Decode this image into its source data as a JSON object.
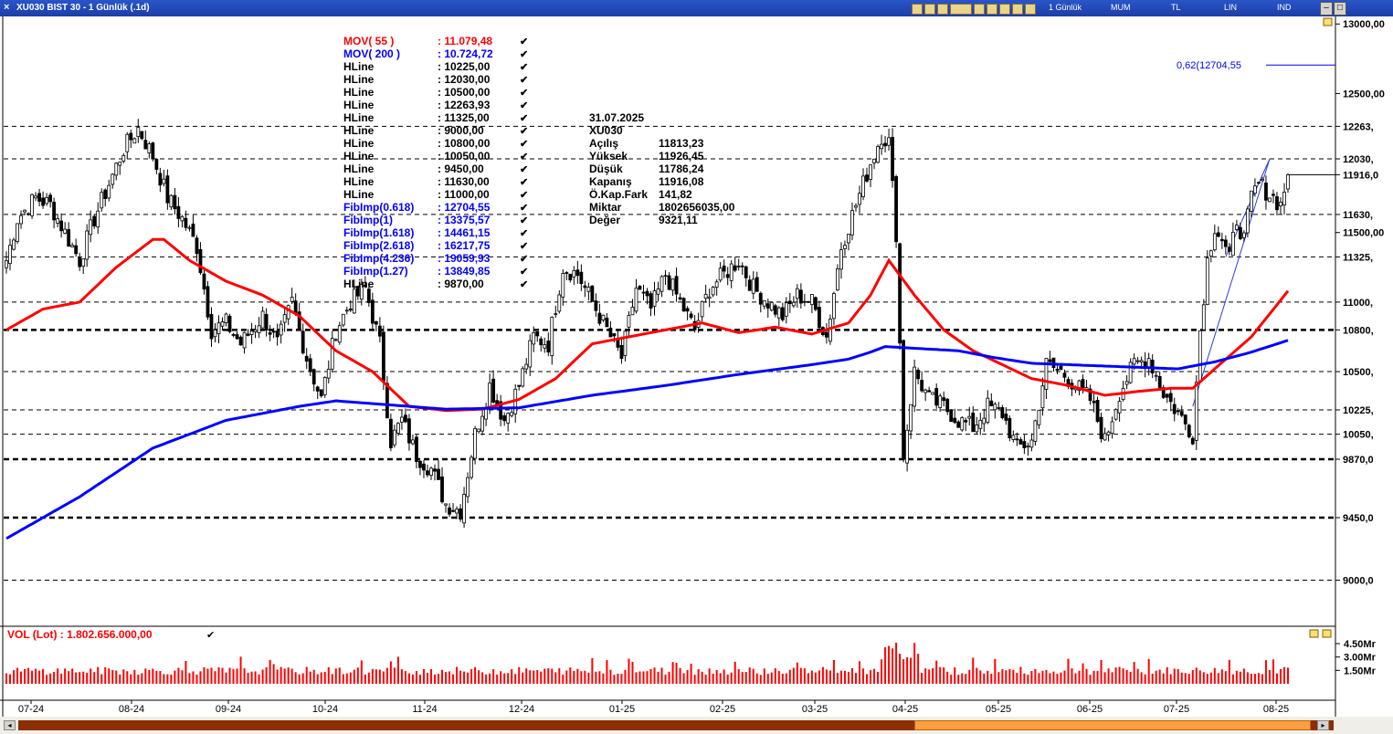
{
  "window": {
    "title": "XU030 BIST 30 - 1 Günlük (.1d)",
    "close_glyph": "×",
    "toolbar_items": [
      "1 Günlük",
      "MUM",
      "TL",
      "LIN",
      "IND"
    ]
  },
  "colors": {
    "mov55": "#ff0000",
    "mov200": "#0000ff",
    "fib": "#0000ff",
    "hline_label": "#000000",
    "volume": "#ff0000",
    "candle_up": "#ffffff",
    "candle_down": "#000000"
  },
  "legend": {
    "mov55": {
      "name": "MOV( 55 )",
      "value": ": 11.079,48"
    },
    "mov200": {
      "name": "MOV( 200 )",
      "value": ": 10.724,72"
    },
    "items": [
      {
        "name": "HLine",
        "value": ": 10225,00",
        "kind": "hline"
      },
      {
        "name": "HLine",
        "value": ": 12030,00",
        "kind": "hline"
      },
      {
        "name": "HLine",
        "value": ": 10500,00",
        "kind": "hline"
      },
      {
        "name": "HLine",
        "value": ": 12263,93",
        "kind": "hline"
      },
      {
        "name": "HLine",
        "value": ": 11325,00",
        "kind": "hline"
      },
      {
        "name": "HLine",
        "value": ": 9000,00",
        "kind": "hline"
      },
      {
        "name": "HLine",
        "value": ": 10800,00",
        "kind": "hline"
      },
      {
        "name": "HLine",
        "value": ": 10050,00",
        "kind": "hline"
      },
      {
        "name": "HLine",
        "value": ": 9450,00",
        "kind": "hline"
      },
      {
        "name": "HLine",
        "value": ": 11630,00",
        "kind": "hline"
      },
      {
        "name": "HLine",
        "value": ": 11000,00",
        "kind": "hline"
      },
      {
        "name": "FibImp(0.618)",
        "value": ": 12704,55",
        "kind": "fib"
      },
      {
        "name": "FibImp(1)",
        "value": ": 13375,57",
        "kind": "fib"
      },
      {
        "name": "FibImp(1.618)",
        "value": ": 14461,15",
        "kind": "fib"
      },
      {
        "name": "FibImp(2.618)",
        "value": ": 16217,75",
        "kind": "fib"
      },
      {
        "name": "FibImp(4.236)",
        "value": ": 19059,93",
        "kind": "fib"
      },
      {
        "name": "FibImp(1.27)",
        "value": ": 13849,85",
        "kind": "fib"
      },
      {
        "name": "HLine",
        "value": ": 9870,00",
        "kind": "hline"
      }
    ],
    "check_glyph": "✔"
  },
  "info_box": {
    "date": "31.07.2025",
    "symbol": "XU030",
    "rows": [
      {
        "label": "Açılış",
        "value": "11813,23"
      },
      {
        "label": "Yüksek",
        "value": "11926,45"
      },
      {
        "label": "Düşük",
        "value": "11786,24"
      },
      {
        "label": "Kapanış",
        "value": "11916,08"
      },
      {
        "label": "Ö.Kap.Fark",
        "value": "141,82"
      },
      {
        "label": "Miktar",
        "value": "1802656035,00"
      },
      {
        "label": "Değer",
        "value": "9321,11"
      }
    ]
  },
  "fib_label": "0,62(12704,55",
  "price_axis": {
    "labels": [
      {
        "value": 13000,
        "text": "13000,00"
      },
      {
        "value": 12500,
        "text": "12500,00"
      },
      {
        "value": 12263.93,
        "text": "12263,"
      },
      {
        "value": 12030,
        "text": "12030,"
      },
      {
        "value": 11916.08,
        "text": "11916,0",
        "bold": true
      },
      {
        "value": 11630,
        "text": "11630,"
      },
      {
        "value": 11500,
        "text": "11500,00"
      },
      {
        "value": 11325,
        "text": "11325,"
      },
      {
        "value": 11000,
        "text": "11000,"
      },
      {
        "value": 10800,
        "text": "10800,"
      },
      {
        "value": 10500,
        "text": "10500,"
      },
      {
        "value": 10225,
        "text": "10225,"
      },
      {
        "value": 10050,
        "text": "10050,"
      },
      {
        "value": 9870,
        "text": "9870,0"
      },
      {
        "value": 9450,
        "text": "9450,0"
      },
      {
        "value": 9000,
        "text": "9000,0"
      }
    ]
  },
  "volume_panel": {
    "label": "VOL (Lot)   : 1.802.656.000,00",
    "axis_labels": [
      {
        "value": 4.5,
        "text": "4.50Mr"
      },
      {
        "value": 3.0,
        "text": "3.00Mr"
      },
      {
        "value": 1.5,
        "text": "1.50Mr"
      }
    ]
  },
  "chart_data": {
    "type": "candlestick",
    "symbol": "XU030",
    "x_ticks": [
      "07-24",
      "08-24",
      "09-24",
      "10-24",
      "11-24",
      "12-24",
      "01-25",
      "02-25",
      "03-25",
      "04-25",
      "05-25",
      "06-25",
      "07-25",
      "08-25"
    ],
    "ylim": [
      8600,
      13100
    ],
    "hlines": [
      12263.93,
      12030,
      11630,
      11325,
      11000,
      10800,
      10500,
      10225,
      10050,
      9870,
      9450,
      9000
    ],
    "hlines_bold": [
      10800,
      9870,
      9450
    ],
    "fib_level": 12704.55,
    "close_anchors": [
      [
        0,
        11300
      ],
      [
        3,
        11600
      ],
      [
        8,
        11750
      ],
      [
        12,
        11700
      ],
      [
        16,
        11500
      ],
      [
        20,
        11300
      ],
      [
        24,
        11600
      ],
      [
        28,
        11850
      ],
      [
        32,
        12100
      ],
      [
        36,
        12250
      ],
      [
        40,
        12050
      ],
      [
        44,
        11750
      ],
      [
        48,
        11600
      ],
      [
        52,
        11400
      ],
      [
        56,
        10800
      ],
      [
        60,
        10850
      ],
      [
        64,
        10700
      ],
      [
        70,
        10900
      ],
      [
        74,
        10700
      ],
      [
        78,
        11000
      ],
      [
        82,
        10600
      ],
      [
        86,
        10300
      ],
      [
        90,
        10800
      ],
      [
        94,
        11000
      ],
      [
        98,
        11100
      ],
      [
        102,
        10700
      ],
      [
        105,
        10000
      ],
      [
        108,
        10150
      ],
      [
        112,
        9900
      ],
      [
        116,
        9800
      ],
      [
        120,
        9550
      ],
      [
        124,
        9500
      ],
      [
        128,
        10050
      ],
      [
        132,
        10400
      ],
      [
        136,
        10150
      ],
      [
        140,
        10400
      ],
      [
        144,
        10750
      ],
      [
        148,
        10700
      ],
      [
        152,
        11250
      ],
      [
        156,
        11200
      ],
      [
        160,
        11000
      ],
      [
        164,
        10800
      ],
      [
        168,
        10600
      ],
      [
        172,
        11100
      ],
      [
        176,
        10950
      ],
      [
        180,
        11200
      ],
      [
        184,
        11000
      ],
      [
        188,
        10800
      ],
      [
        192,
        11100
      ],
      [
        196,
        11200
      ],
      [
        200,
        11300
      ],
      [
        204,
        11100
      ],
      [
        208,
        11000
      ],
      [
        212,
        10900
      ],
      [
        216,
        11050
      ],
      [
        220,
        11000
      ],
      [
        224,
        10750
      ],
      [
        228,
        11400
      ],
      [
        232,
        11700
      ],
      [
        236,
        12000
      ],
      [
        239,
        12200
      ],
      [
        241,
        12150
      ],
      [
        243,
        11500
      ],
      [
        245,
        9900
      ],
      [
        248,
        10500
      ],
      [
        252,
        10300
      ],
      [
        256,
        10250
      ],
      [
        260,
        10150
      ],
      [
        264,
        10100
      ],
      [
        268,
        10250
      ],
      [
        272,
        10200
      ],
      [
        276,
        9950
      ],
      [
        280,
        10000
      ],
      [
        284,
        10550
      ],
      [
        288,
        10500
      ],
      [
        292,
        10400
      ],
      [
        296,
        10300
      ],
      [
        300,
        10000
      ],
      [
        304,
        10350
      ],
      [
        308,
        10550
      ],
      [
        312,
        10600
      ],
      [
        316,
        10350
      ],
      [
        320,
        10200
      ],
      [
        324,
        10050
      ],
      [
        326,
        10800
      ],
      [
        328,
        11300
      ],
      [
        330,
        11550
      ],
      [
        332,
        11450
      ],
      [
        334,
        11300
      ],
      [
        336,
        11600
      ],
      [
        338,
        11450
      ],
      [
        340,
        11750
      ],
      [
        342,
        11850
      ],
      [
        344,
        11800
      ],
      [
        346,
        11750
      ],
      [
        348,
        11700
      ],
      [
        350,
        11916
      ]
    ],
    "mov55": [
      [
        0,
        10800
      ],
      [
        10,
        10950
      ],
      [
        20,
        11000
      ],
      [
        30,
        11250
      ],
      [
        40,
        11450
      ],
      [
        43,
        11450
      ],
      [
        50,
        11300
      ],
      [
        60,
        11150
      ],
      [
        70,
        11050
      ],
      [
        80,
        10900
      ],
      [
        90,
        10650
      ],
      [
        100,
        10500
      ],
      [
        110,
        10250
      ],
      [
        120,
        10220
      ],
      [
        130,
        10230
      ],
      [
        140,
        10300
      ],
      [
        150,
        10450
      ],
      [
        160,
        10700
      ],
      [
        170,
        10750
      ],
      [
        180,
        10800
      ],
      [
        190,
        10850
      ],
      [
        200,
        10780
      ],
      [
        210,
        10820
      ],
      [
        220,
        10770
      ],
      [
        230,
        10850
      ],
      [
        236,
        11050
      ],
      [
        241,
        11300
      ],
      [
        248,
        11050
      ],
      [
        256,
        10800
      ],
      [
        264,
        10650
      ],
      [
        272,
        10550
      ],
      [
        280,
        10450
      ],
      [
        290,
        10400
      ],
      [
        300,
        10330
      ],
      [
        310,
        10360
      ],
      [
        318,
        10380
      ],
      [
        324,
        10380
      ],
      [
        330,
        10520
      ],
      [
        340,
        10750
      ],
      [
        350,
        11080
      ]
    ],
    "mov200": [
      [
        0,
        9300
      ],
      [
        20,
        9600
      ],
      [
        40,
        9950
      ],
      [
        60,
        10150
      ],
      [
        80,
        10250
      ],
      [
        90,
        10290
      ],
      [
        100,
        10270
      ],
      [
        120,
        10230
      ],
      [
        140,
        10240
      ],
      [
        160,
        10330
      ],
      [
        180,
        10400
      ],
      [
        200,
        10480
      ],
      [
        220,
        10550
      ],
      [
        230,
        10590
      ],
      [
        236,
        10640
      ],
      [
        240,
        10680
      ],
      [
        260,
        10650
      ],
      [
        270,
        10600
      ],
      [
        280,
        10560
      ],
      [
        300,
        10540
      ],
      [
        320,
        10520
      ],
      [
        330,
        10570
      ],
      [
        340,
        10640
      ],
      [
        350,
        10725
      ]
    ],
    "volume_series": "daily volume bars, typically 0.8–2.5 Mr, peaks around 3.5–4.6 Mr near 04-25",
    "last_bar": {
      "date": "31.07.2025",
      "open": 11813.23,
      "high": 11926.45,
      "low": 11786.24,
      "close": 11916.08,
      "volume": 1802656035
    }
  }
}
